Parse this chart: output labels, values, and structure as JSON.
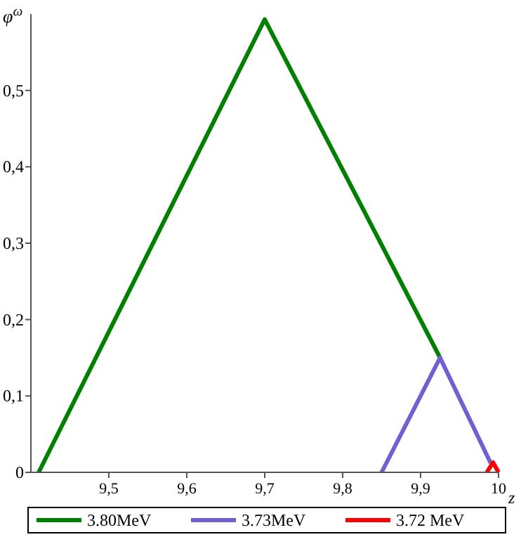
{
  "chart_data": {
    "type": "line",
    "xlabel": "z",
    "ylabel": "φ$^{ω}$",
    "xlim": [
      9.4,
      10
    ],
    "ylim": [
      0,
      0.6
    ],
    "xticks": [
      {
        "value": 9.5,
        "label": "9,5"
      },
      {
        "value": 9.6,
        "label": "9,6"
      },
      {
        "value": 9.7,
        "label": "9,7"
      },
      {
        "value": 9.8,
        "label": "9,8"
      },
      {
        "value": 9.9,
        "label": "9,9"
      },
      10
    ],
    "yticks": [
      0,
      {
        "value": 0.1,
        "label": "0,1"
      },
      {
        "value": 0.2,
        "label": "0,2"
      },
      {
        "value": 0.3,
        "label": "0,3"
      },
      {
        "value": 0.4,
        "label": "0,4"
      },
      {
        "value": 0.5,
        "label": "0,5"
      }
    ],
    "legend": "bottom",
    "grid": false,
    "marker": "none",
    "line_style": "solid",
    "series": [
      {
        "name": "3.80MeV",
        "color": "#008000",
        "x": [
          9.41,
          9.7,
          9.925
        ],
        "values": [
          0,
          0.593,
          0.15
        ]
      },
      {
        "name": "3.73MeV",
        "color": "#7060d0",
        "x": [
          9.85,
          9.925,
          9.99
        ],
        "values": [
          0,
          0.15,
          0.012
        ]
      },
      {
        "name": "3.72 MeV",
        "color": "#ff0000",
        "x": [
          9.985,
          9.993,
          10
        ],
        "values": [
          0,
          0.013,
          0
        ]
      }
    ]
  }
}
